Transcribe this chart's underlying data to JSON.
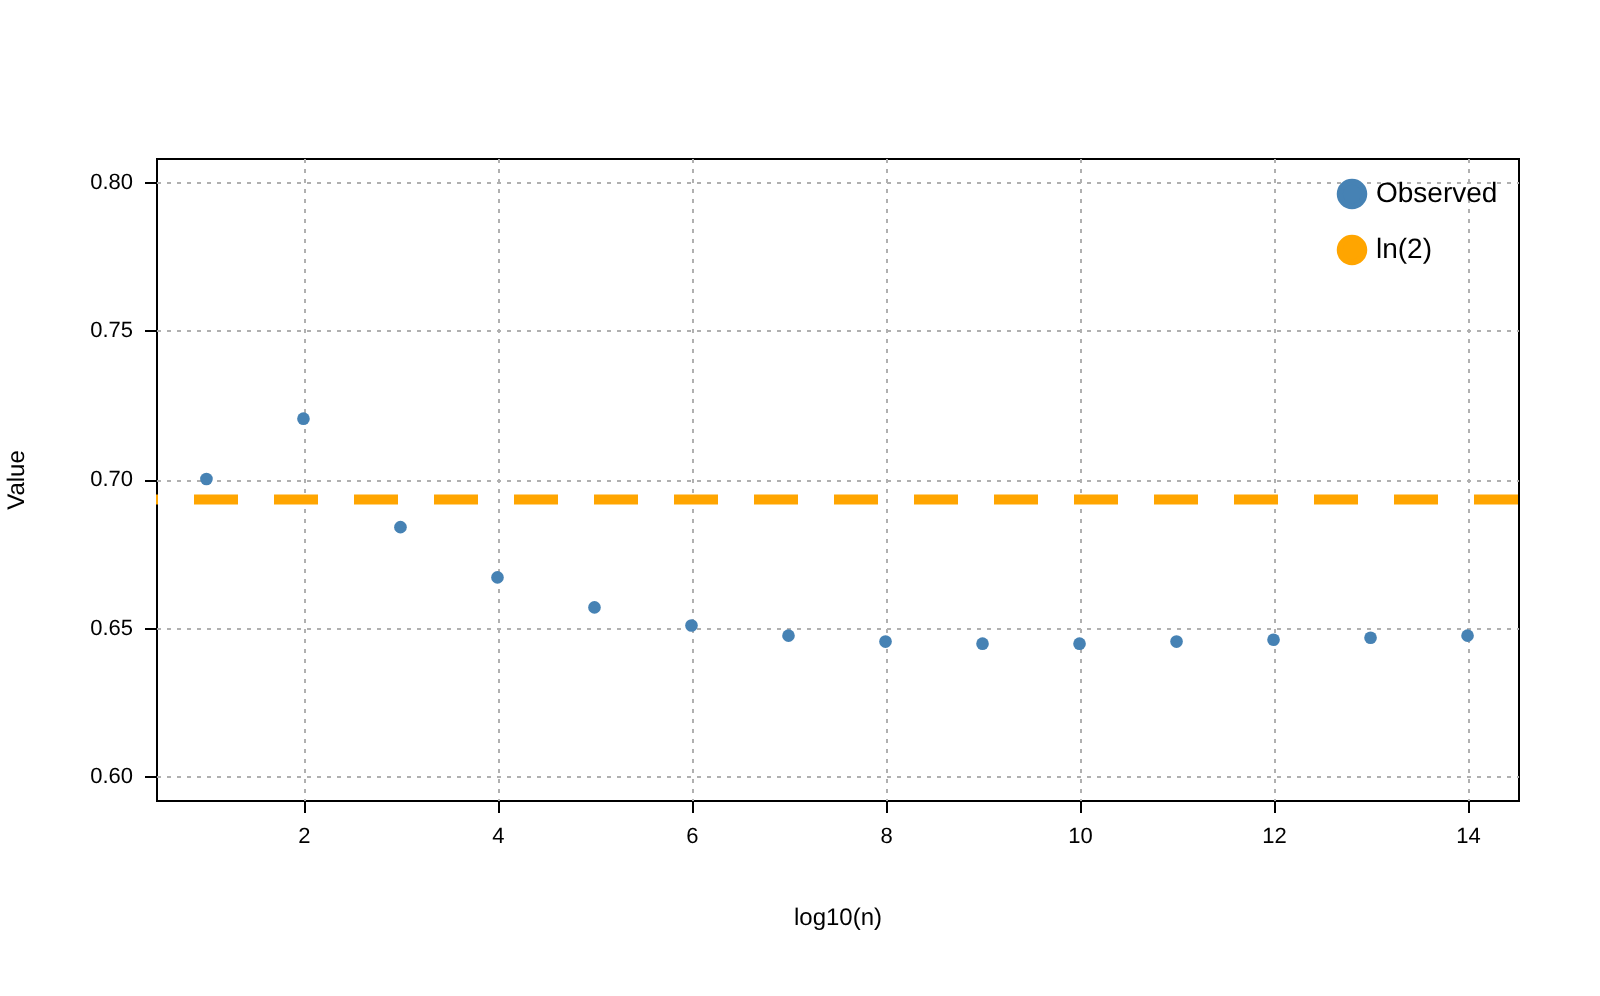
{
  "chart_data": {
    "type": "scatter",
    "xlabel": "log10(n)",
    "ylabel": "Value",
    "x": [
      1,
      2,
      3,
      4,
      5,
      6,
      7,
      8,
      9,
      10,
      11,
      12,
      13,
      14
    ],
    "series": [
      {
        "name": "Observed",
        "color": "#4682b4",
        "values": [
          0.7,
          0.7203,
          0.6838,
          0.6669,
          0.6568,
          0.6507,
          0.6473,
          0.6453,
          0.6446,
          0.6446,
          0.6453,
          0.6459,
          0.6466,
          0.6473
        ]
      }
    ],
    "ref_lines": [
      {
        "axis": "y",
        "value": 0.6931,
        "label": "ln(2)",
        "color": "#ffa500",
        "line_style": "dashed"
      }
    ],
    "xlim": [
      0.48,
      14.52
    ],
    "ylim": [
      0.592,
      0.808
    ],
    "xticks": [
      2,
      4,
      6,
      8,
      10,
      12,
      14
    ],
    "yticks": [
      {
        "value": 0.6,
        "label": "0.60"
      },
      0.65,
      {
        "value": 0.7,
        "label": "0.70"
      },
      0.75,
      {
        "value": 0.8,
        "label": "0.80"
      }
    ],
    "grid": true,
    "legend": "top right",
    "marker": "circle"
  }
}
